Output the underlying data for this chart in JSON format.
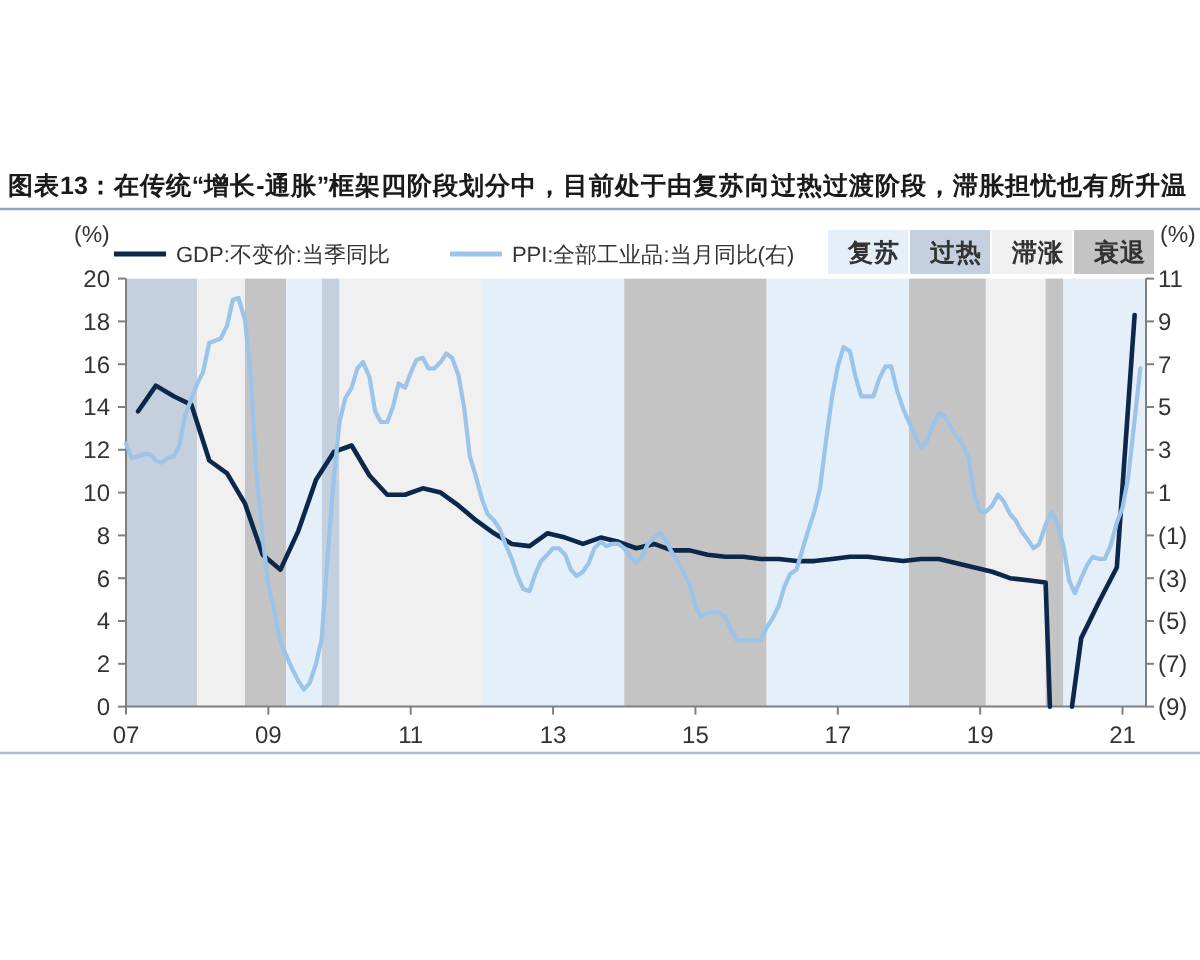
{
  "chart_data": {
    "type": "line",
    "title": "图表13：在传统“增长-通胀”框架四阶段划分中，目前处于由复苏向过热过渡阶段，滞胀担忧也有所升温",
    "ylabel": "(%)",
    "y2label": "(%)",
    "legend": "top",
    "xlim": [
      2007,
      2021.33
    ],
    "xticks": [
      {
        "value": 2007,
        "label": "07"
      },
      {
        "value": 2009,
        "label": "09"
      },
      {
        "value": 2011,
        "label": "11"
      },
      {
        "value": 2013,
        "label": "13"
      },
      {
        "value": 2015,
        "label": "15"
      },
      {
        "value": 2017,
        "label": "17"
      },
      {
        "value": 2019,
        "label": "19"
      },
      {
        "value": 2021,
        "label": "21"
      }
    ],
    "ylim": [
      0,
      20
    ],
    "yticks": [
      0,
      2,
      4,
      6,
      8,
      10,
      12,
      14,
      16,
      18,
      20
    ],
    "y2lim": [
      -9,
      11
    ],
    "y2ticks": [
      {
        "value": -9,
        "label": "(9)"
      },
      {
        "value": -7,
        "label": "(7)"
      },
      {
        "value": -5,
        "label": "(5)"
      },
      {
        "value": -3,
        "label": "(3)"
      },
      {
        "value": -1,
        "label": "(1)"
      },
      1,
      3,
      5,
      7,
      9,
      11
    ],
    "bands": [
      {
        "axis": "x",
        "from": 2007,
        "to": 2008,
        "color": "#c5d0de"
      },
      {
        "axis": "x",
        "from": 2008,
        "to": 2008.67,
        "color": "#f0f0f0"
      },
      {
        "axis": "x",
        "from": 2008.67,
        "to": 2009.25,
        "color": "#c4c4c4"
      },
      {
        "axis": "x",
        "from": 2009.25,
        "to": 2009.75,
        "color": "#e5effa",
        "label": "复苏"
      },
      {
        "axis": "x",
        "from": 2009.75,
        "to": 2010,
        "color": "#c5d0de",
        "label": "过热"
      },
      {
        "axis": "x",
        "from": 2010,
        "to": 2012,
        "color": "#f0f0f0",
        "label": "滞涨"
      },
      {
        "axis": "x",
        "from": 2012,
        "to": 2014,
        "color": "#e5effa"
      },
      {
        "axis": "x",
        "from": 2014,
        "to": 2016,
        "color": "#c4c4c4",
        "label": "衰退"
      },
      {
        "axis": "x",
        "from": 2016,
        "to": 2018,
        "color": "#e5effa"
      },
      {
        "axis": "x",
        "from": 2018,
        "to": 2019.08,
        "color": "#c4c4c4"
      },
      {
        "axis": "x",
        "from": 2019.08,
        "to": 2019.92,
        "color": "#f0f0f0"
      },
      {
        "axis": "x",
        "from": 2019.92,
        "to": 2020.17,
        "color": "#c4c4c4"
      },
      {
        "axis": "x",
        "from": 2020.17,
        "to": 2021.33,
        "color": "#e5effa"
      }
    ],
    "series": [
      {
        "name": "GDP:不变价:当季同比",
        "color": "#0c2749",
        "x": [
          2007.17,
          2007.42,
          2007.67,
          2007.92,
          2008.17,
          2008.42,
          2008.67,
          2008.92,
          2009.17,
          2009.42,
          2009.67,
          2009.92,
          2010.17,
          2010.42,
          2010.67,
          2010.92,
          2011.17,
          2011.42,
          2011.67,
          2011.92,
          2012.17,
          2012.42,
          2012.67,
          2012.92,
          2013.17,
          2013.42,
          2013.67,
          2013.92,
          2014.17,
          2014.42,
          2014.67,
          2014.92,
          2015.17,
          2015.42,
          2015.67,
          2015.92,
          2016.17,
          2016.42,
          2016.67,
          2016.92,
          2017.17,
          2017.42,
          2017.67,
          2017.92,
          2018.17,
          2018.42,
          2018.67,
          2018.92,
          2019.17,
          2019.42,
          2019.67,
          2019.92,
          2019.98,
          null,
          2020.29,
          2020.42,
          2020.67,
          2020.92,
          2021.17
        ],
        "values": [
          13.8,
          15.0,
          14.5,
          14.1,
          11.5,
          10.9,
          9.5,
          7.1,
          6.4,
          8.2,
          10.6,
          11.9,
          12.2,
          10.8,
          9.9,
          9.9,
          10.2,
          10.0,
          9.4,
          8.7,
          8.1,
          7.6,
          7.5,
          8.1,
          7.9,
          7.6,
          7.9,
          7.7,
          7.4,
          7.6,
          7.3,
          7.3,
          7.1,
          7.0,
          7.0,
          6.9,
          6.9,
          6.8,
          6.8,
          6.9,
          7.0,
          7.0,
          6.9,
          6.8,
          6.9,
          6.9,
          6.7,
          6.5,
          6.3,
          6.0,
          5.9,
          5.8,
          0,
          null,
          0,
          3.2,
          4.9,
          6.5,
          18.3
        ]
      },
      {
        "name": "PPI:全部工业品:当月同比(右)",
        "color": "#9cc3e8",
        "axis": "y2",
        "x": [
          2007,
          2007.08,
          2007.17,
          2007.25,
          2007.33,
          2007.42,
          2007.5,
          2007.58,
          2007.67,
          2007.75,
          2007.83,
          2007.92,
          2008,
          2008.08,
          2008.17,
          2008.25,
          2008.33,
          2008.42,
          2008.5,
          2008.58,
          2008.67,
          2008.75,
          2008.83,
          2008.92,
          2009,
          2009.08,
          2009.17,
          2009.25,
          2009.33,
          2009.42,
          2009.5,
          2009.58,
          2009.67,
          2009.75,
          2009.83,
          2009.92,
          2010,
          2010.08,
          2010.17,
          2010.25,
          2010.33,
          2010.42,
          2010.5,
          2010.58,
          2010.67,
          2010.75,
          2010.83,
          2010.92,
          2011,
          2011.08,
          2011.17,
          2011.25,
          2011.33,
          2011.42,
          2011.5,
          2011.58,
          2011.67,
          2011.75,
          2011.83,
          2011.92,
          2012,
          2012.08,
          2012.17,
          2012.25,
          2012.33,
          2012.42,
          2012.5,
          2012.58,
          2012.67,
          2012.75,
          2012.83,
          2012.92,
          2013,
          2013.08,
          2013.17,
          2013.25,
          2013.33,
          2013.42,
          2013.5,
          2013.58,
          2013.67,
          2013.75,
          2013.83,
          2013.92,
          2014,
          2014.08,
          2014.17,
          2014.25,
          2014.33,
          2014.42,
          2014.5,
          2014.58,
          2014.67,
          2014.75,
          2014.83,
          2014.92,
          2015,
          2015.08,
          2015.17,
          2015.25,
          2015.33,
          2015.42,
          2015.5,
          2015.58,
          2015.67,
          2015.75,
          2015.83,
          2015.92,
          2016,
          2016.08,
          2016.17,
          2016.25,
          2016.33,
          2016.42,
          2016.5,
          2016.58,
          2016.67,
          2016.75,
          2016.83,
          2016.92,
          2017,
          2017.08,
          2017.17,
          2017.25,
          2017.33,
          2017.42,
          2017.5,
          2017.58,
          2017.67,
          2017.75,
          2017.83,
          2017.92,
          2018,
          2018.08,
          2018.17,
          2018.25,
          2018.33,
          2018.42,
          2018.5,
          2018.58,
          2018.67,
          2018.75,
          2018.83,
          2018.92,
          2019,
          2019.08,
          2019.17,
          2019.25,
          2019.33,
          2019.42,
          2019.5,
          2019.58,
          2019.67,
          2019.75,
          2019.83,
          2019.92,
          2020,
          2020.08,
          2020.17,
          2020.25,
          2020.33,
          2020.42,
          2020.5,
          2020.58,
          2020.67,
          2020.75,
          2020.83,
          2020.92,
          2021,
          2021.08,
          2021.17,
          2021.25
        ],
        "values": [
          3.3,
          2.6,
          2.7,
          2.8,
          2.8,
          2.5,
          2.4,
          2.6,
          2.7,
          3.2,
          4.6,
          5.4,
          6.1,
          6.6,
          8.0,
          8.1,
          8.2,
          8.8,
          10.0,
          10.1,
          9.1,
          6.6,
          2.0,
          -1.1,
          -3.3,
          -4.5,
          -6.0,
          -6.6,
          -7.2,
          -7.8,
          -8.2,
          -7.9,
          -7.0,
          -5.8,
          -2.1,
          1.7,
          4.3,
          5.4,
          5.9,
          6.8,
          7.1,
          6.4,
          4.8,
          4.3,
          4.3,
          5.0,
          6.1,
          5.9,
          6.6,
          7.2,
          7.3,
          6.8,
          6.8,
          7.1,
          7.5,
          7.3,
          6.5,
          5.0,
          2.7,
          1.7,
          0.7,
          0.0,
          -0.3,
          -0.7,
          -1.4,
          -2.1,
          -2.9,
          -3.5,
          -3.6,
          -2.8,
          -2.2,
          -1.9,
          -1.6,
          -1.6,
          -1.9,
          -2.6,
          -2.9,
          -2.7,
          -2.3,
          -1.6,
          -1.3,
          -1.5,
          -1.4,
          -1.4,
          -1.6,
          -2.0,
          -2.3,
          -2.0,
          -1.4,
          -1.1,
          -0.9,
          -1.2,
          -1.8,
          -2.2,
          -2.7,
          -3.3,
          -4.3,
          -4.8,
          -4.6,
          -4.6,
          -4.6,
          -4.8,
          -5.4,
          -5.9,
          -5.9,
          -5.9,
          -5.9,
          -5.9,
          -5.3,
          -4.9,
          -4.3,
          -3.4,
          -2.8,
          -2.6,
          -1.7,
          -0.8,
          0.1,
          1.2,
          3.3,
          5.5,
          6.9,
          7.8,
          7.6,
          6.4,
          5.5,
          5.5,
          5.5,
          6.3,
          6.9,
          6.9,
          5.8,
          4.9,
          4.3,
          3.7,
          3.1,
          3.4,
          4.1,
          4.7,
          4.6,
          4.1,
          3.6,
          3.3,
          2.7,
          0.9,
          0.1,
          0.1,
          0.4,
          0.9,
          0.6,
          0.0,
          -0.3,
          -0.8,
          -1.2,
          -1.6,
          -1.4,
          -0.5,
          0.1,
          -0.4,
          -1.5,
          -3.1,
          -3.7,
          -3.0,
          -2.4,
          -2.0,
          -2.1,
          -2.1,
          -1.5,
          -0.4,
          0.3,
          1.7,
          4.4,
          6.8
        ]
      }
    ]
  }
}
